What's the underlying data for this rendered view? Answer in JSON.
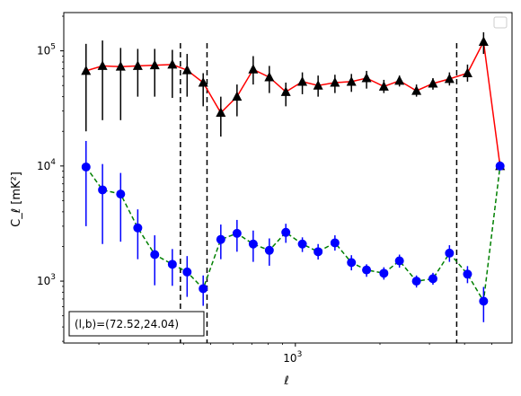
{
  "chart_data": {
    "type": "scatter",
    "xlabel": "ℓ",
    "ylabel": "C_ℓ  [mK²]",
    "x_scale": "log",
    "y_scale": "log",
    "xlim": [
      150,
      5900
    ],
    "ylim": [
      290,
      215000
    ],
    "x_tick_labels": [
      {
        "value": 1000,
        "base": "10",
        "exp": "3"
      }
    ],
    "y_tick_labels": [
      {
        "value": 1000,
        "base": "10",
        "exp": "3"
      },
      {
        "value": 10000,
        "base": "10",
        "exp": "4"
      },
      {
        "value": 100000,
        "base": "10",
        "exp": "5"
      }
    ],
    "vlines": [
      390,
      485,
      3750
    ],
    "annotation": "(l,b)=(72.52,24.04)",
    "legend": "upper right",
    "grid": false,
    "series": [
      {
        "color": "#000000",
        "line_color": "#ff0000",
        "line_style": "solid",
        "marker": "triangle",
        "x": [
          180,
          206,
          239,
          275,
          316,
          365,
          412,
          470,
          543,
          620,
          708,
          808,
          925,
          1059,
          1205,
          1383,
          1583,
          1792,
          2065,
          2346,
          2697,
          3087,
          3534,
          4097,
          4674,
          5350
        ],
        "y": [
          67000,
          74000,
          73000,
          74000,
          75000,
          76000,
          68000,
          53000,
          29000,
          40000,
          69000,
          59000,
          44000,
          54000,
          50000,
          53000,
          54000,
          58000,
          49000,
          55000,
          45000,
          52000,
          57000,
          64000,
          120000,
          9999
        ],
        "y_low": [
          20000,
          25000,
          25000,
          40000,
          40000,
          39000,
          40000,
          33000,
          18000,
          27000,
          51000,
          43000,
          33000,
          42000,
          40000,
          43000,
          44000,
          47000,
          43000,
          49000,
          40000,
          46000,
          50000,
          54000,
          94000,
          9999
        ],
        "y_high": [
          115000,
          123000,
          106000,
          104000,
          104000,
          102000,
          94000,
          64000,
          40000,
          51000,
          90000,
          74000,
          53000,
          65000,
          61000,
          62000,
          63000,
          67000,
          56000,
          61000,
          51000,
          58000,
          65000,
          76000,
          145000,
          9999
        ]
      },
      {
        "color": "#0000ff",
        "line_color": "#008000",
        "line_style": "dashed",
        "marker": "circle",
        "x": [
          180,
          206,
          239,
          275,
          316,
          365,
          412,
          470,
          543,
          620,
          708,
          808,
          925,
          1059,
          1205,
          1383,
          1583,
          1792,
          2065,
          2346,
          2697,
          3087,
          3534,
          4097,
          4674,
          5350
        ],
        "y": [
          9800,
          6200,
          5700,
          2900,
          1700,
          1400,
          1200,
          860,
          2300,
          2600,
          2100,
          1850,
          2650,
          2100,
          1800,
          2150,
          1450,
          1250,
          1170,
          1500,
          1000,
          1050,
          1750,
          1150,
          670,
          9999
        ],
        "y_low": [
          3000,
          2100,
          2200,
          1550,
          920,
          910,
          730,
          610,
          1550,
          1800,
          1470,
          1360,
          2150,
          1790,
          1540,
          1840,
          1240,
          1090,
          1030,
          1310,
          880,
          930,
          1470,
          960,
          440,
          9999
        ],
        "y_high": [
          16500,
          10400,
          8700,
          4200,
          2500,
          1900,
          1650,
          1120,
          3100,
          3400,
          2750,
          2350,
          3150,
          2400,
          2100,
          2500,
          1680,
          1400,
          1320,
          1700,
          1120,
          1180,
          2050,
          1350,
          890,
          9999
        ]
      }
    ]
  }
}
